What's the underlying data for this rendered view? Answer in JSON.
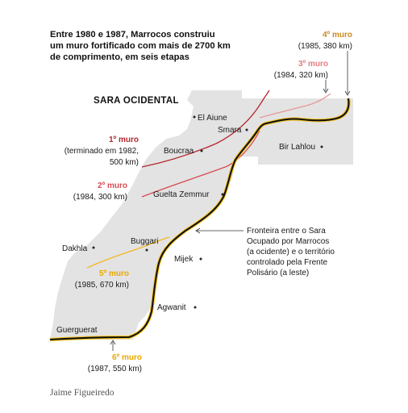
{
  "title_lines": [
    "Entre 1980 e 1987, Marrocos construiu",
    "um muro fortificado com mais de 2700 km",
    "de comprimento, em seis etapas"
  ],
  "region_label": "SARA OCIDENTAL",
  "places": {
    "el_aiune": "El Aiune",
    "smara": "Smara",
    "boucraa": "Boucraa",
    "bir_lahlou": "Bir Lahlou",
    "guelta_zemmur": "Guelta Zemmur",
    "dakhla": "Dakhla",
    "buggari": "Buggari",
    "mijek": "Mijek",
    "agwanit": "Agwanit",
    "guerguerat": "Guerguerat"
  },
  "walls": {
    "w1": {
      "title": "1º muro",
      "detail_1": "(terminado em 1982,",
      "detail_2": "500 km)",
      "color": "#b3262c"
    },
    "w2": {
      "title": "2º muro",
      "detail": "(1984, 300 km)",
      "color": "#d84a52"
    },
    "w3": {
      "title": "3º muro",
      "detail": "(1984, 320 km)",
      "color": "#e9959a"
    },
    "w4": {
      "title": "4º muro",
      "detail": "(1985, 380 km)",
      "color": "#c98a1e"
    },
    "w5": {
      "title": "5º muro",
      "detail": "(1985, 670 km)",
      "color": "#f2b928"
    },
    "w6": {
      "title": "6º muro",
      "detail": "(1987, 550 km)",
      "color": "#f2c118"
    }
  },
  "border_note": [
    "Fronteira entre o Sara",
    "Ocupado por Marrocos",
    "(a ocidente) e o território",
    "controlado pela Frente",
    "Polisário (a leste)"
  ],
  "credit": "Jaime Figueiredo",
  "colors": {
    "territory": "#e3e3e3",
    "border_line": "#111111",
    "border_glow": "#f6c21c"
  }
}
